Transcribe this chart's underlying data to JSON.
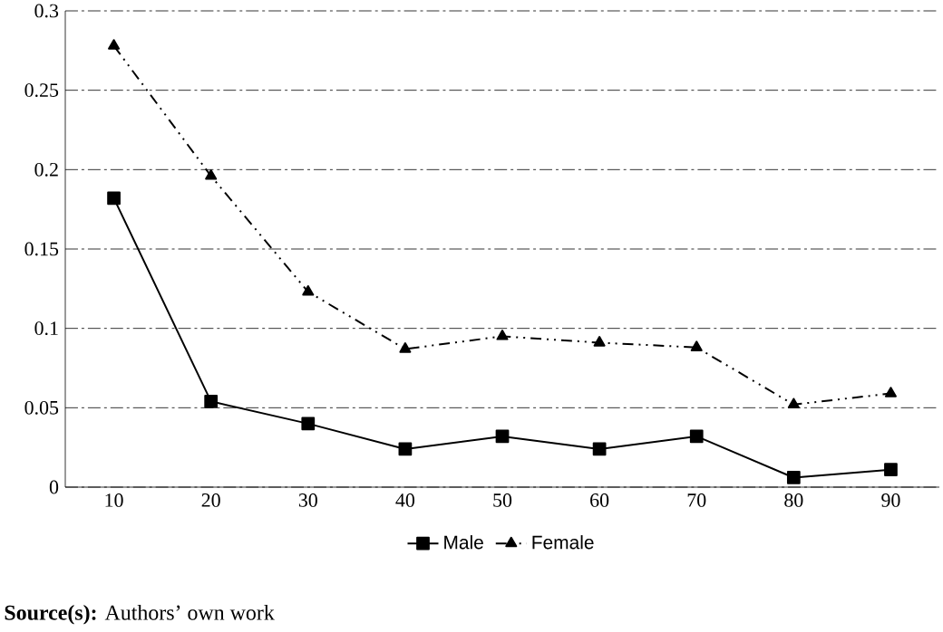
{
  "chart_data": {
    "type": "line",
    "categories": [
      "10",
      "20",
      "30",
      "40",
      "50",
      "60",
      "70",
      "80",
      "90"
    ],
    "series": [
      {
        "name": "Male",
        "color": "#000000",
        "marker": "square",
        "line_style": "solid",
        "values": [
          0.182,
          0.054,
          0.04,
          0.024,
          0.032,
          0.024,
          0.032,
          0.006,
          0.011
        ]
      },
      {
        "name": "Female",
        "color": "#000000",
        "marker": "triangle",
        "line_style": "dashed",
        "values": [
          0.278,
          0.196,
          0.123,
          0.087,
          0.095,
          0.091,
          0.088,
          0.052,
          0.059
        ]
      }
    ],
    "ylim": [
      0,
      0.3
    ],
    "yticks": [
      0,
      0.05,
      0.1,
      0.15,
      0.2,
      0.25,
      0.3
    ],
    "grid": "y",
    "legend": "bottom",
    "annotations": [
      "**Source(s):** Authors’ own work"
    ]
  }
}
